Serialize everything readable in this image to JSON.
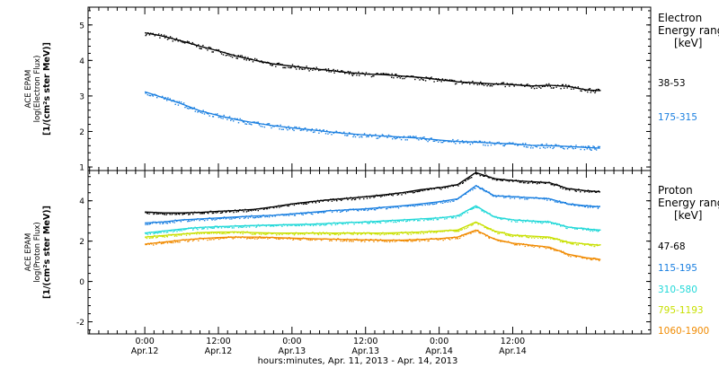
{
  "chart_data": [
    {
      "type": "scatter",
      "title": "",
      "ylabel_lines": [
        "ACE EPAM",
        "log(Electron Flux)",
        "[1/(cm²s ster MeV)]"
      ],
      "ylim": [
        0.9,
        5.5
      ],
      "yticks": [
        1,
        2,
        3,
        4,
        5
      ],
      "legend_title_lines": [
        "Electron",
        "Energy ranges",
        "[keV]"
      ],
      "series": [
        {
          "name": "38-53",
          "color": "#000000",
          "x": [
            0,
            6,
            12,
            18,
            24,
            30,
            36,
            42,
            48,
            54,
            60,
            66,
            72,
            78,
            84,
            90,
            96,
            102,
            108,
            114,
            120,
            126,
            132,
            138,
            144,
            148.5
          ],
          "y": [
            4.78,
            4.68,
            4.55,
            4.4,
            4.27,
            4.12,
            4.0,
            3.9,
            3.84,
            3.78,
            3.72,
            3.66,
            3.62,
            3.6,
            3.56,
            3.52,
            3.46,
            3.4,
            3.37,
            3.34,
            3.32,
            3.28,
            3.3,
            3.27,
            3.17,
            3.15
          ]
        },
        {
          "name": "175-315",
          "color": "#1a7fe0",
          "x": [
            0,
            6,
            12,
            18,
            24,
            30,
            36,
            42,
            48,
            54,
            60,
            66,
            72,
            78,
            84,
            90,
            96,
            102,
            108,
            114,
            120,
            126,
            132,
            138,
            144,
            148.5
          ],
          "y": [
            3.12,
            2.95,
            2.78,
            2.58,
            2.45,
            2.33,
            2.24,
            2.16,
            2.1,
            2.05,
            1.99,
            1.94,
            1.9,
            1.87,
            1.84,
            1.81,
            1.76,
            1.72,
            1.7,
            1.67,
            1.65,
            1.61,
            1.6,
            1.58,
            1.55,
            1.53
          ]
        }
      ]
    },
    {
      "type": "scatter",
      "title": "",
      "ylabel_lines": [
        "ACE EPAM",
        "log(Proton Flux)",
        "[1/(cm²s ster MeV)]"
      ],
      "ylim": [
        -2.6,
        5.5
      ],
      "yticks": [
        -2,
        0,
        2,
        4
      ],
      "legend_title_lines": [
        "Proton",
        "Energy ranges",
        "[keV]"
      ],
      "series": [
        {
          "name": "47-68",
          "color": "#000000",
          "x": [
            0,
            6,
            12,
            18,
            24,
            30,
            36,
            42,
            48,
            54,
            60,
            66,
            72,
            78,
            84,
            90,
            96,
            102,
            108,
            114,
            120,
            126,
            132,
            138,
            144,
            148.5
          ],
          "y": [
            3.45,
            3.4,
            3.4,
            3.42,
            3.48,
            3.52,
            3.58,
            3.7,
            3.85,
            3.95,
            4.05,
            4.12,
            4.2,
            4.3,
            4.4,
            4.55,
            4.65,
            4.8,
            5.4,
            5.1,
            5.0,
            4.95,
            4.9,
            4.6,
            4.5,
            4.45
          ]
        },
        {
          "name": "115-195",
          "color": "#1a7fe0",
          "x": [
            0,
            6,
            12,
            18,
            24,
            30,
            36,
            42,
            48,
            54,
            60,
            66,
            72,
            78,
            84,
            90,
            96,
            102,
            108,
            114,
            120,
            126,
            132,
            138,
            144,
            148.5
          ],
          "y": [
            2.9,
            2.95,
            3.05,
            3.1,
            3.15,
            3.2,
            3.25,
            3.28,
            3.35,
            3.42,
            3.5,
            3.55,
            3.6,
            3.68,
            3.75,
            3.85,
            3.95,
            4.1,
            4.75,
            4.25,
            4.2,
            4.15,
            4.1,
            3.85,
            3.75,
            3.7
          ]
        },
        {
          "name": "310-580",
          "color": "#20d8d8",
          "x": [
            0,
            6,
            12,
            18,
            24,
            30,
            36,
            42,
            48,
            54,
            60,
            66,
            72,
            78,
            84,
            90,
            96,
            102,
            108,
            114,
            120,
            126,
            132,
            138,
            144,
            148.5
          ],
          "y": [
            2.4,
            2.5,
            2.6,
            2.68,
            2.72,
            2.75,
            2.78,
            2.8,
            2.82,
            2.84,
            2.88,
            2.92,
            2.95,
            3.0,
            3.05,
            3.1,
            3.15,
            3.25,
            3.75,
            3.2,
            3.05,
            3.0,
            2.95,
            2.7,
            2.6,
            2.55
          ]
        },
        {
          "name": "795-1193",
          "color": "#c8e000",
          "x": [
            0,
            6,
            12,
            18,
            24,
            30,
            36,
            42,
            48,
            54,
            60,
            66,
            72,
            78,
            84,
            90,
            96,
            102,
            108,
            114,
            120,
            126,
            132,
            138,
            144,
            148.5
          ],
          "y": [
            2.2,
            2.28,
            2.35,
            2.42,
            2.45,
            2.45,
            2.42,
            2.4,
            2.4,
            2.4,
            2.4,
            2.4,
            2.4,
            2.4,
            2.42,
            2.45,
            2.5,
            2.55,
            2.95,
            2.5,
            2.3,
            2.25,
            2.2,
            1.95,
            1.85,
            1.8
          ]
        },
        {
          "name": "1060-1900",
          "color": "#f08a00",
          "x": [
            0,
            6,
            12,
            18,
            24,
            30,
            36,
            42,
            48,
            54,
            60,
            66,
            72,
            78,
            84,
            90,
            96,
            102,
            108,
            114,
            120,
            126,
            132,
            138,
            144,
            148.5
          ],
          "y": [
            1.85,
            1.95,
            2.05,
            2.12,
            2.18,
            2.2,
            2.2,
            2.18,
            2.15,
            2.12,
            2.1,
            2.08,
            2.06,
            2.05,
            2.05,
            2.08,
            2.12,
            2.2,
            2.55,
            2.1,
            1.9,
            1.8,
            1.7,
            1.35,
            1.18,
            1.1
          ]
        }
      ]
    }
  ],
  "x_axis": {
    "range_hours": [
      -18.5,
      165
    ],
    "label": "hours:minutes, Apr. 11, 2013 - Apr. 14, 2013",
    "ticks": [
      {
        "hour": 0,
        "time": "0:00",
        "date": "Apr.12"
      },
      {
        "hour": 24,
        "time": "12:00",
        "date": "Apr.12"
      },
      {
        "hour": 48,
        "time": "0:00",
        "date": "Apr.13"
      },
      {
        "hour": 72,
        "time": "12:00",
        "date": "Apr.13"
      },
      {
        "hour": 96,
        "time": "0:00",
        "date": "Apr.14"
      },
      {
        "hour": 120,
        "time": "12:00",
        "date": "Apr.14"
      }
    ]
  }
}
